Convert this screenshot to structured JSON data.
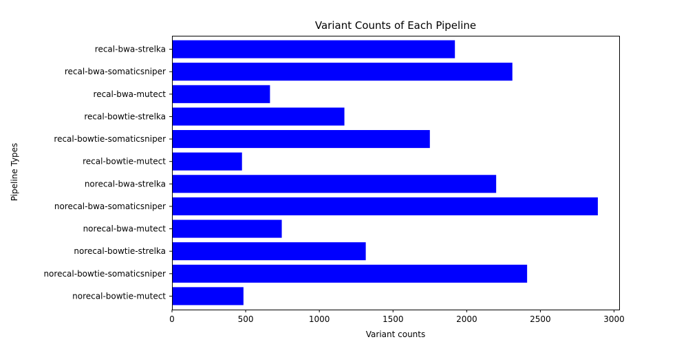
{
  "chart_data": {
    "type": "bar",
    "orientation": "horizontal",
    "title": "Variant Counts of Each Pipeline",
    "xlabel": "Variant counts",
    "ylabel": "Pipeline Types",
    "categories": [
      "norecal-bowtie-mutect",
      "norecal-bowtie-somaticsniper",
      "norecal-bowtie-strelka",
      "norecal-bwa-mutect",
      "norecal-bwa-somaticsniper",
      "norecal-bwa-strelka",
      "recal-bowtie-mutect",
      "recal-bowtie-somaticsniper",
      "recal-bowtie-strelka",
      "recal-bwa-mutect",
      "recal-bwa-somaticsniper",
      "recal-bwa-strelka"
    ],
    "values": [
      485,
      2410,
      1315,
      745,
      2890,
      2200,
      475,
      1750,
      1170,
      665,
      2310,
      1920
    ],
    "xlim": [
      0,
      3035
    ],
    "xticks": [
      0,
      500,
      1000,
      1500,
      2000,
      2500,
      3000
    ],
    "bar_color": "#0000ff",
    "grid": false
  }
}
